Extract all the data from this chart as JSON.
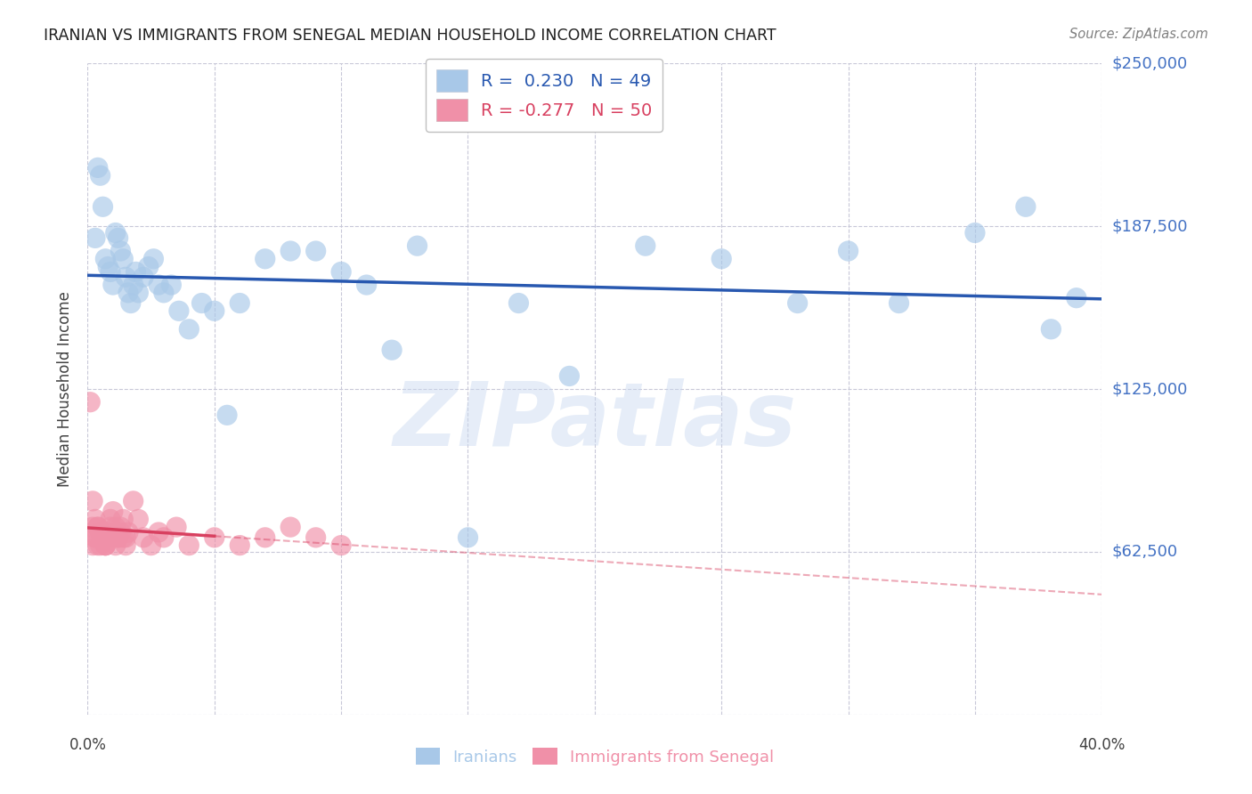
{
  "title": "IRANIAN VS IMMIGRANTS FROM SENEGAL MEDIAN HOUSEHOLD INCOME CORRELATION CHART",
  "source": "Source: ZipAtlas.com",
  "ylabel": "Median Household Income",
  "yticks": [
    0,
    62500,
    125000,
    187500,
    250000
  ],
  "ytick_labels": [
    "",
    "$62,500",
    "$125,000",
    "$187,500",
    "$250,000"
  ],
  "xlim": [
    0.0,
    0.4
  ],
  "ylim": [
    0,
    250000
  ],
  "watermark": "ZIPatlas",
  "iranian_color": "#a8c8e8",
  "senegal_color": "#f090a8",
  "iranian_line_color": "#2858b0",
  "senegal_line_color": "#d84060",
  "background_color": "#ffffff",
  "grid_color": "#c8c8d8",
  "title_color": "#202020",
  "ytick_color": "#4472c4",
  "legend_r1": "R =  0.230",
  "legend_n1": "N = 49",
  "legend_r2": "R = -0.277",
  "legend_n2": "N = 50",
  "iranians_x": [
    0.003,
    0.004,
    0.005,
    0.006,
    0.007,
    0.008,
    0.009,
    0.01,
    0.011,
    0.012,
    0.013,
    0.014,
    0.015,
    0.016,
    0.017,
    0.018,
    0.019,
    0.02,
    0.022,
    0.024,
    0.026,
    0.028,
    0.03,
    0.033,
    0.036,
    0.04,
    0.045,
    0.05,
    0.055,
    0.06,
    0.07,
    0.08,
    0.09,
    0.1,
    0.11,
    0.12,
    0.13,
    0.15,
    0.17,
    0.19,
    0.22,
    0.25,
    0.28,
    0.3,
    0.32,
    0.35,
    0.37,
    0.38,
    0.39
  ],
  "iranians_y": [
    183000,
    210000,
    207000,
    195000,
    175000,
    172000,
    170000,
    165000,
    185000,
    183000,
    178000,
    175000,
    168000,
    162000,
    158000,
    165000,
    170000,
    162000,
    168000,
    172000,
    175000,
    165000,
    162000,
    165000,
    155000,
    148000,
    158000,
    155000,
    115000,
    158000,
    175000,
    178000,
    178000,
    170000,
    165000,
    140000,
    180000,
    68000,
    158000,
    130000,
    180000,
    175000,
    158000,
    178000,
    158000,
    185000,
    195000,
    148000,
    160000
  ],
  "senegal_x": [
    0.001,
    0.002,
    0.003,
    0.004,
    0.005,
    0.006,
    0.007,
    0.008,
    0.009,
    0.01,
    0.011,
    0.012,
    0.013,
    0.014,
    0.015,
    0.002,
    0.003,
    0.004,
    0.005,
    0.006,
    0.007,
    0.008,
    0.009,
    0.01,
    0.011,
    0.012,
    0.013,
    0.014,
    0.015,
    0.016,
    0.002,
    0.003,
    0.004,
    0.005,
    0.006,
    0.007,
    0.018,
    0.02,
    0.022,
    0.025,
    0.028,
    0.03,
    0.035,
    0.04,
    0.05,
    0.06,
    0.07,
    0.08,
    0.09,
    0.1
  ],
  "senegal_y": [
    120000,
    82000,
    75000,
    72000,
    70000,
    68000,
    65000,
    70000,
    75000,
    78000,
    72000,
    68000,
    70000,
    75000,
    68000,
    72000,
    68000,
    65000,
    70000,
    68000,
    65000,
    68000,
    72000,
    68000,
    65000,
    68000,
    72000,
    68000,
    65000,
    70000,
    65000,
    68000,
    72000,
    65000,
    68000,
    65000,
    82000,
    75000,
    68000,
    65000,
    70000,
    68000,
    72000,
    65000,
    68000,
    65000,
    68000,
    72000,
    68000,
    65000
  ]
}
